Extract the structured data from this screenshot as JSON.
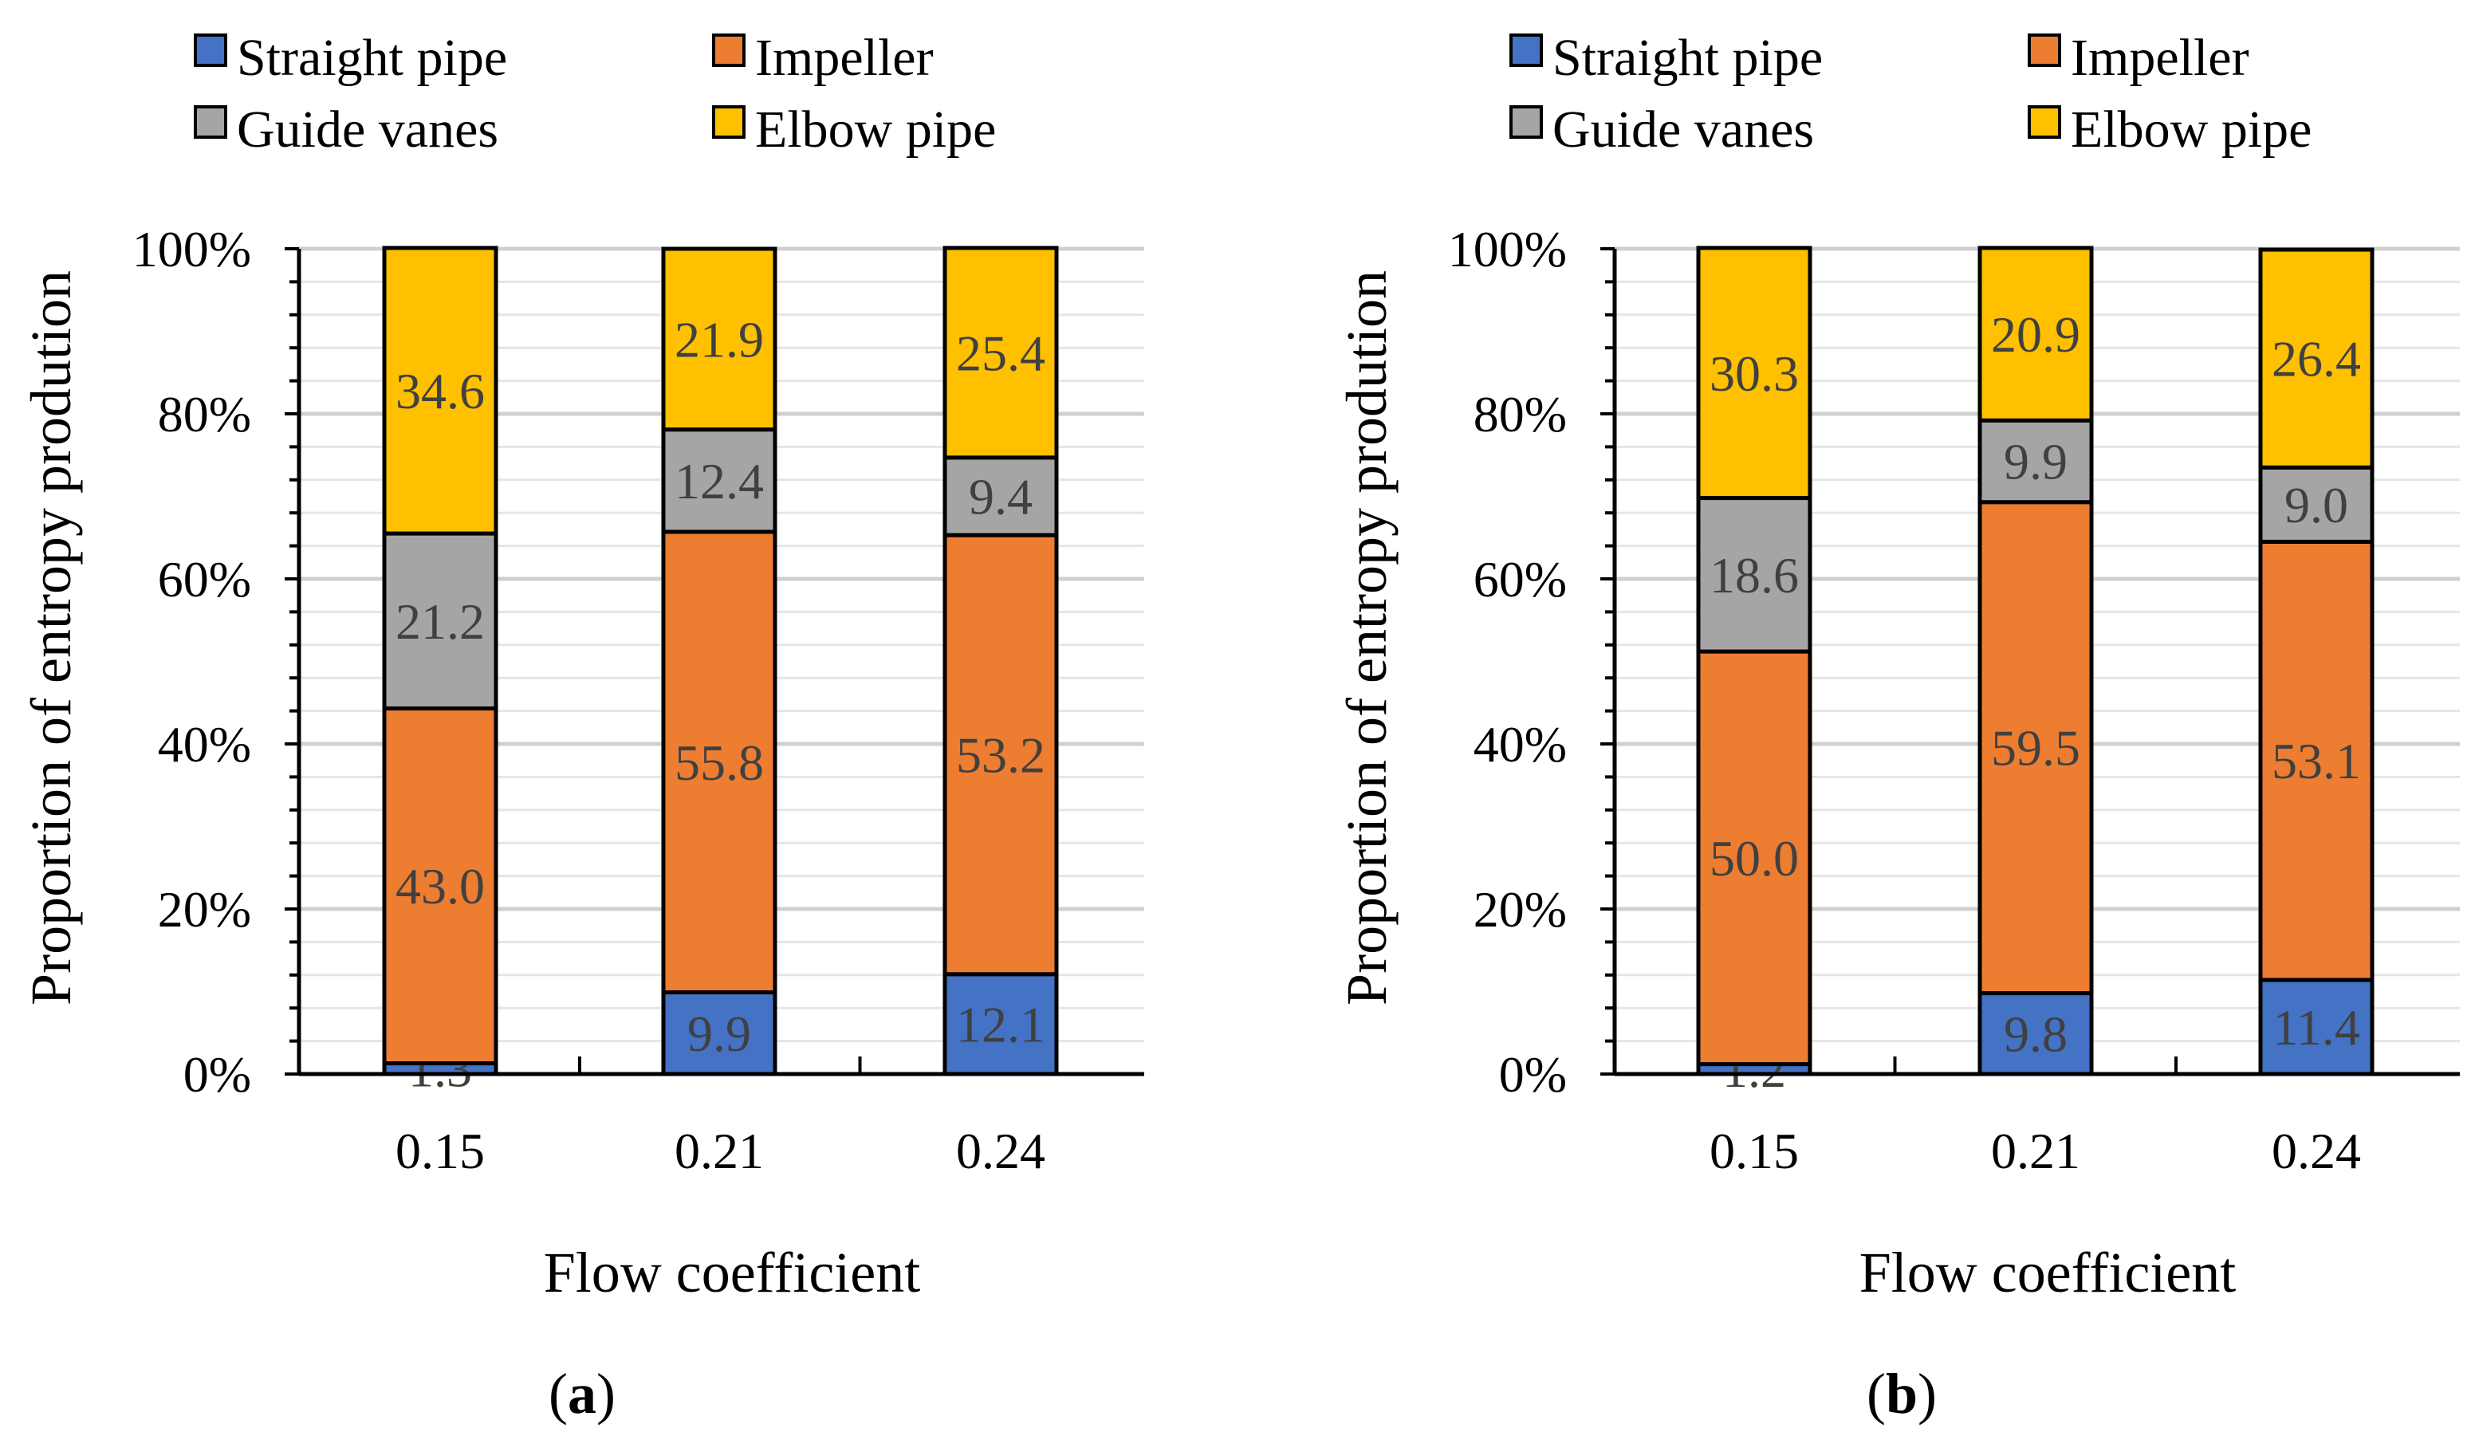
{
  "colors": {
    "straight_pipe": "#4472C4",
    "impeller": "#ED7D31",
    "guide_vanes": "#A5A5A5",
    "elbow_pipe": "#FFC000",
    "gridline": "#D9D9D9",
    "segment_label": "#404040"
  },
  "legend": [
    {
      "key": "straight_pipe",
      "label": "Straight pipe"
    },
    {
      "key": "impeller",
      "label": "Impeller"
    },
    {
      "key": "guide_vanes",
      "label": "Guide vanes"
    },
    {
      "key": "elbow_pipe",
      "label": "Elbow pipe"
    }
  ],
  "chart_data": [
    {
      "type": "bar",
      "stacked": true,
      "panel_label": "a",
      "title": "",
      "xlabel": "Flow coefficient",
      "ylabel": "Proportion of entropy prodution",
      "ylim": [
        0,
        100
      ],
      "y_ticks": [
        "0%",
        "20%",
        "40%",
        "60%",
        "80%",
        "100%"
      ],
      "categories": [
        "0.15",
        "0.21",
        "0.24"
      ],
      "series": [
        {
          "key": "straight_pipe",
          "name": "Straight pipe",
          "values": [
            1.3,
            9.9,
            12.1
          ],
          "labels": [
            "1.3",
            "9.9",
            "12.1"
          ]
        },
        {
          "key": "impeller",
          "name": "Impeller",
          "values": [
            43.0,
            55.8,
            53.2
          ],
          "labels": [
            "43.0",
            "55.8",
            "53.2"
          ]
        },
        {
          "key": "guide_vanes",
          "name": "Guide vanes",
          "values": [
            21.2,
            12.4,
            9.4
          ],
          "labels": [
            "21.2",
            "12.4",
            "9.4"
          ]
        },
        {
          "key": "elbow_pipe",
          "name": "Elbow pipe",
          "values": [
            34.6,
            21.9,
            25.4
          ],
          "labels": [
            "34.6",
            "21.9",
            "25.4"
          ]
        }
      ]
    },
    {
      "type": "bar",
      "stacked": true,
      "panel_label": "b",
      "title": "",
      "xlabel": "Flow coefficient",
      "ylabel": "Proportion of entropy prodution",
      "ylim": [
        0,
        100
      ],
      "y_ticks": [
        "0%",
        "20%",
        "40%",
        "60%",
        "80%",
        "100%"
      ],
      "categories": [
        "0.15",
        "0.21",
        "0.24"
      ],
      "series": [
        {
          "key": "straight_pipe",
          "name": "Straight pipe",
          "values": [
            1.2,
            9.8,
            11.4
          ],
          "labels": [
            "1.2",
            "9.8",
            "11.4"
          ]
        },
        {
          "key": "impeller",
          "name": "Impeller",
          "values": [
            50.0,
            59.5,
            53.1
          ],
          "labels": [
            "50.0",
            "59.5",
            "53.1"
          ]
        },
        {
          "key": "guide_vanes",
          "name": "Guide vanes",
          "values": [
            18.6,
            9.9,
            9.0
          ],
          "labels": [
            "18.6",
            "9.9",
            "9.0"
          ]
        },
        {
          "key": "elbow_pipe",
          "name": "Elbow pipe",
          "values": [
            30.3,
            20.9,
            26.4
          ],
          "labels": [
            "30.3",
            "20.9",
            "26.4"
          ]
        }
      ]
    }
  ]
}
